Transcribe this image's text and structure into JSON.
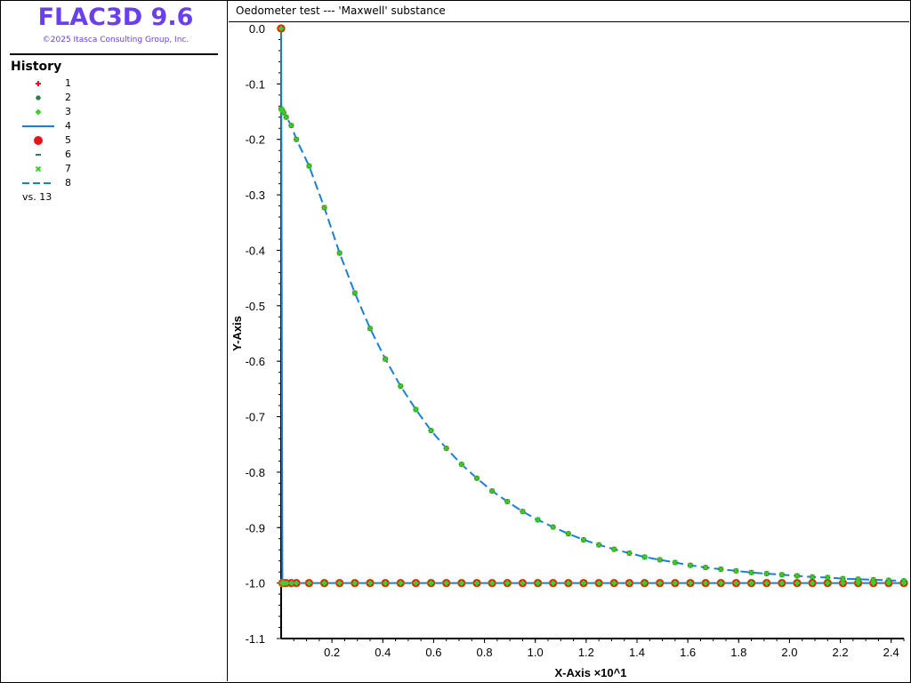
{
  "app": {
    "title": "FLAC3D 9.6",
    "copyright": "©2025 Itasca Consulting Group, Inc."
  },
  "legend": {
    "title": "History",
    "items": [
      {
        "label": "1",
        "symbol": "plus",
        "color": "#e8141c"
      },
      {
        "label": "2",
        "symbol": "hex",
        "color": "#2e7d4a"
      },
      {
        "label": "3",
        "symbol": "diamond",
        "color": "#3ad126"
      },
      {
        "label": "4",
        "symbol": "line",
        "color": "#1a7fd6"
      },
      {
        "label": "5",
        "symbol": "dot",
        "color": "#e8141c"
      },
      {
        "label": "6",
        "symbol": "dash",
        "color": "#2e7d4a"
      },
      {
        "label": "7",
        "symbol": "cross",
        "color": "#3ad126"
      },
      {
        "label": "8",
        "symbol": "longdash",
        "color": "#1a7fd6"
      }
    ],
    "vs_label": "vs. 13"
  },
  "chart_data": {
    "type": "line",
    "title": "Oedometer test --- 'Maxwell' substance",
    "xlabel": "X-Axis ×10^1",
    "ylabel": "Y-Axis",
    "xlim": [
      0,
      2.45
    ],
    "ylim": [
      -1.1,
      0.0
    ],
    "x_ticks": [
      "0.2",
      "0.4",
      "0.6",
      "0.8",
      "1.0",
      "1.2",
      "1.4",
      "1.6",
      "1.8",
      "2.0",
      "2.2",
      "2.4"
    ],
    "y_ticks": [
      "0.0",
      "-0.1",
      "-0.2",
      "-0.3",
      "-0.4",
      "-0.5",
      "-0.6",
      "-0.7",
      "-0.8",
      "-0.9",
      "-1.0",
      "-1.1"
    ],
    "grid": false,
    "x": [
      0,
      0.005,
      0.01,
      0.02,
      0.04,
      0.06,
      0.11,
      0.17,
      0.23,
      0.29,
      0.35,
      0.41,
      0.47,
      0.53,
      0.59,
      0.65,
      0.71,
      0.77,
      0.83,
      0.89,
      0.95,
      1.01,
      1.07,
      1.13,
      1.19,
      1.25,
      1.31,
      1.37,
      1.43,
      1.49,
      1.55,
      1.61,
      1.67,
      1.73,
      1.79,
      1.85,
      1.91,
      1.97,
      2.03,
      2.09,
      2.15,
      2.21,
      2.27,
      2.33,
      2.39,
      2.45
    ],
    "series": [
      {
        "name": "1",
        "style": "plus",
        "color": "#e8141c",
        "values": [
          -0.145,
          -0.148,
          -0.152,
          -0.16,
          -0.175,
          -0.2,
          -0.248,
          -0.323,
          -0.405,
          -0.477,
          -0.541,
          -0.596,
          -0.645,
          -0.687,
          -0.725,
          -0.757,
          -0.786,
          -0.811,
          -0.834,
          -0.853,
          -0.871,
          -0.886,
          -0.899,
          -0.911,
          -0.922,
          -0.931,
          -0.939,
          -0.946,
          -0.953,
          -0.958,
          -0.963,
          -0.968,
          -0.972,
          -0.975,
          -0.978,
          -0.981,
          -0.983,
          -0.985,
          -0.987,
          -0.989,
          -0.99,
          -0.992,
          -0.993,
          -0.994,
          -0.995,
          -0.996
        ]
      },
      {
        "name": "2",
        "style": "hex",
        "color": "#2e7d4a",
        "values": [
          -0.145,
          -0.148,
          -0.152,
          -0.16,
          -0.175,
          -0.2,
          -0.248,
          -0.323,
          -0.405,
          -0.477,
          -0.541,
          -0.596,
          -0.645,
          -0.687,
          -0.725,
          -0.757,
          -0.786,
          -0.811,
          -0.834,
          -0.853,
          -0.871,
          -0.886,
          -0.899,
          -0.911,
          -0.922,
          -0.931,
          -0.939,
          -0.946,
          -0.953,
          -0.958,
          -0.963,
          -0.968,
          -0.972,
          -0.975,
          -0.978,
          -0.981,
          -0.983,
          -0.985,
          -0.987,
          -0.989,
          -0.99,
          -0.992,
          -0.993,
          -0.994,
          -0.995,
          -0.996
        ]
      },
      {
        "name": "3",
        "style": "diamond",
        "color": "#3ad126",
        "values": [
          0.0,
          -1.0,
          -1.0,
          -1.0,
          -1.0,
          -1.0,
          -1.0,
          -1.0,
          -1.0,
          -1.0,
          -1.0,
          -1.0,
          -1.0,
          -1.0,
          -1.0,
          -1.0,
          -1.0,
          -1.0,
          -1.0,
          -1.0,
          -1.0,
          -1.0,
          -1.0,
          -1.0,
          -1.0,
          -1.0,
          -1.0,
          -1.0,
          -1.0,
          -1.0,
          -1.0,
          -1.0,
          -1.0,
          -1.0,
          -1.0,
          -1.0,
          -1.0,
          -1.0,
          -1.0,
          -1.0,
          -1.0,
          -1.0,
          -1.0,
          -1.0,
          -1.0,
          -1.0
        ]
      },
      {
        "name": "4",
        "style": "line",
        "color": "#1a7fd6",
        "values": [
          0.0,
          -1.0,
          -1.0,
          -1.0,
          -1.0,
          -1.0,
          -1.0,
          -1.0,
          -1.0,
          -1.0,
          -1.0,
          -1.0,
          -1.0,
          -1.0,
          -1.0,
          -1.0,
          -1.0,
          -1.0,
          -1.0,
          -1.0,
          -1.0,
          -1.0,
          -1.0,
          -1.0,
          -1.0,
          -1.0,
          -1.0,
          -1.0,
          -1.0,
          -1.0,
          -1.0,
          -1.0,
          -1.0,
          -1.0,
          -1.0,
          -1.0,
          -1.0,
          -1.0,
          -1.0,
          -1.0,
          -1.0,
          -1.0,
          -1.0,
          -1.0,
          -1.0,
          -1.0
        ]
      },
      {
        "name": "5",
        "style": "dot",
        "color": "#e8141c",
        "values": [
          0.0,
          -1.0,
          -1.0,
          -1.0,
          -1.0,
          -1.0,
          -1.0,
          -1.0,
          -1.0,
          -1.0,
          -1.0,
          -1.0,
          -1.0,
          -1.0,
          -1.0,
          -1.0,
          -1.0,
          -1.0,
          -1.0,
          -1.0,
          -1.0,
          -1.0,
          -1.0,
          -1.0,
          -1.0,
          -1.0,
          -1.0,
          -1.0,
          -1.0,
          -1.0,
          -1.0,
          -1.0,
          -1.0,
          -1.0,
          -1.0,
          -1.0,
          -1.0,
          -1.0,
          -1.0,
          -1.0,
          -1.0,
          -1.0,
          -1.0,
          -1.0,
          -1.0,
          -1.0
        ]
      },
      {
        "name": "6",
        "style": "dash",
        "color": "#2e7d4a",
        "values": [
          0.0,
          -1.0,
          -1.0,
          -1.0,
          -1.0,
          -1.0,
          -1.0,
          -1.0,
          -1.0,
          -1.0,
          -1.0,
          -1.0,
          -1.0,
          -1.0,
          -1.0,
          -1.0,
          -1.0,
          -1.0,
          -1.0,
          -1.0,
          -1.0,
          -1.0,
          -1.0,
          -1.0,
          -1.0,
          -1.0,
          -1.0,
          -1.0,
          -1.0,
          -1.0,
          -1.0,
          -1.0,
          -1.0,
          -1.0,
          -1.0,
          -1.0,
          -1.0,
          -1.0,
          -1.0,
          -1.0,
          -1.0,
          -1.0,
          -1.0,
          -1.0,
          -1.0,
          -1.0
        ]
      },
      {
        "name": "7",
        "style": "cross",
        "color": "#3ad126",
        "values": [
          -0.145,
          -0.148,
          -0.152,
          -0.16,
          -0.175,
          -0.2,
          -0.248,
          -0.323,
          -0.405,
          -0.477,
          -0.541,
          -0.596,
          -0.645,
          -0.687,
          -0.725,
          -0.757,
          -0.786,
          -0.811,
          -0.834,
          -0.853,
          -0.871,
          -0.886,
          -0.899,
          -0.911,
          -0.922,
          -0.931,
          -0.939,
          -0.946,
          -0.953,
          -0.958,
          -0.963,
          -0.968,
          -0.972,
          -0.975,
          -0.978,
          -0.981,
          -0.983,
          -0.985,
          -0.987,
          -0.989,
          -0.99,
          -0.992,
          -0.993,
          -0.994,
          -0.995,
          -0.996
        ]
      },
      {
        "name": "8",
        "style": "longdash",
        "color": "#1a7fd6",
        "values": [
          -0.145,
          -0.148,
          -0.152,
          -0.16,
          -0.175,
          -0.2,
          -0.248,
          -0.323,
          -0.405,
          -0.477,
          -0.541,
          -0.596,
          -0.645,
          -0.687,
          -0.725,
          -0.757,
          -0.786,
          -0.811,
          -0.834,
          -0.853,
          -0.871,
          -0.886,
          -0.899,
          -0.911,
          -0.922,
          -0.931,
          -0.939,
          -0.946,
          -0.953,
          -0.958,
          -0.963,
          -0.968,
          -0.972,
          -0.975,
          -0.978,
          -0.981,
          -0.983,
          -0.985,
          -0.987,
          -0.989,
          -0.99,
          -0.992,
          -0.993,
          -0.994,
          -0.995,
          -0.996
        ]
      }
    ]
  }
}
